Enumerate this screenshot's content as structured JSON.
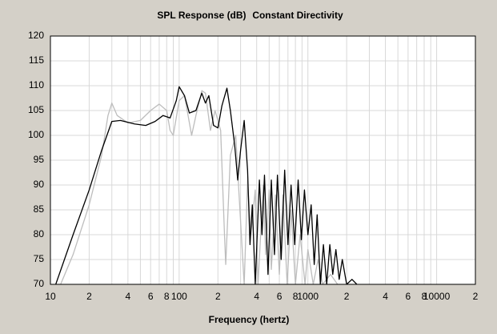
{
  "chart_data": {
    "type": "line",
    "title": "SPL Response (dB)",
    "subtitle": "Constant Directivity",
    "xlabel": "Frequency (hertz)",
    "xscale": "log",
    "xlim": [
      10,
      20000
    ],
    "ylim": [
      70,
      120
    ],
    "yticks": [
      70,
      75,
      80,
      85,
      90,
      95,
      100,
      105,
      110,
      115,
      120
    ],
    "xticks": [
      10,
      {
        "value": 20,
        "label": "2"
      },
      {
        "value": 40,
        "label": "4"
      },
      {
        "value": 60,
        "label": "6"
      },
      {
        "value": 80,
        "label": "8"
      },
      100,
      {
        "value": 200,
        "label": "2"
      },
      {
        "value": 400,
        "label": "4"
      },
      {
        "value": 600,
        "label": "6"
      },
      {
        "value": 800,
        "label": "8"
      },
      1000,
      {
        "value": 2000,
        "label": "2"
      },
      {
        "value": 4000,
        "label": "4"
      },
      {
        "value": 6000,
        "label": "6"
      },
      {
        "value": 8000,
        "label": "8"
      },
      10000,
      {
        "value": 20000,
        "label": "2"
      }
    ],
    "xminor_ticks": [
      30,
      50,
      70,
      90,
      300,
      500,
      700,
      900,
      3000,
      5000,
      7000,
      9000
    ],
    "grid": true,
    "series": [
      {
        "color": "#bdbdbd",
        "x": [
          12,
          15,
          20,
          25,
          28,
          30,
          33,
          40,
          50,
          60,
          70,
          80,
          85,
          90,
          100,
          110,
          125,
          135,
          150,
          160,
          175,
          190,
          210,
          225,
          230,
          250,
          275,
          295,
          320,
          340,
          360,
          390,
          410,
          450,
          470,
          500,
          520,
          560,
          600,
          640,
          690,
          740,
          800,
          870,
          950,
          1000,
          1100,
          1200,
          1300,
          1500,
          1700
        ],
        "values": [
          70,
          76,
          86,
          96,
          104,
          106.5,
          104,
          102.5,
          103,
          105,
          106.3,
          105,
          101,
          100,
          107,
          108,
          100,
          104,
          109,
          108.5,
          101,
          105,
          101,
          80,
          74,
          96,
          100,
          86,
          70,
          91,
          80,
          89,
          70,
          90,
          76,
          89,
          73,
          88,
          72,
          88,
          70,
          85,
          70,
          80,
          70,
          77,
          70,
          75,
          70,
          72,
          70
        ]
      },
      {
        "color": "#000000",
        "x": [
          11,
          15,
          20,
          25,
          30,
          35,
          45,
          55,
          65,
          75,
          85,
          95,
          100,
          110,
          120,
          135,
          150,
          160,
          170,
          185,
          200,
          215,
          235,
          250,
          270,
          285,
          300,
          320,
          340,
          355,
          370,
          390,
          420,
          440,
          460,
          490,
          520,
          550,
          580,
          620,
          660,
          700,
          740,
          790,
          840,
          890,
          940,
          1000,
          1060,
          1120,
          1180,
          1250,
          1320,
          1400,
          1480,
          1560,
          1650,
          1750,
          1850,
          2000,
          2200,
          2400
        ],
        "values": [
          70,
          80,
          89,
          97,
          102.8,
          103,
          102.3,
          102,
          102.8,
          104,
          103.5,
          107,
          109.8,
          108,
          104.5,
          105,
          108.5,
          106.5,
          108,
          102,
          101.5,
          106,
          109.5,
          105,
          98,
          91,
          97,
          103,
          93,
          78,
          86,
          70,
          91,
          80,
          92,
          72,
          91,
          76,
          92,
          75,
          93,
          78,
          90,
          78,
          91,
          79,
          89,
          80,
          86,
          74,
          84,
          70,
          78,
          70,
          78,
          72,
          77,
          71,
          75,
          70,
          71,
          70
        ]
      }
    ]
  }
}
